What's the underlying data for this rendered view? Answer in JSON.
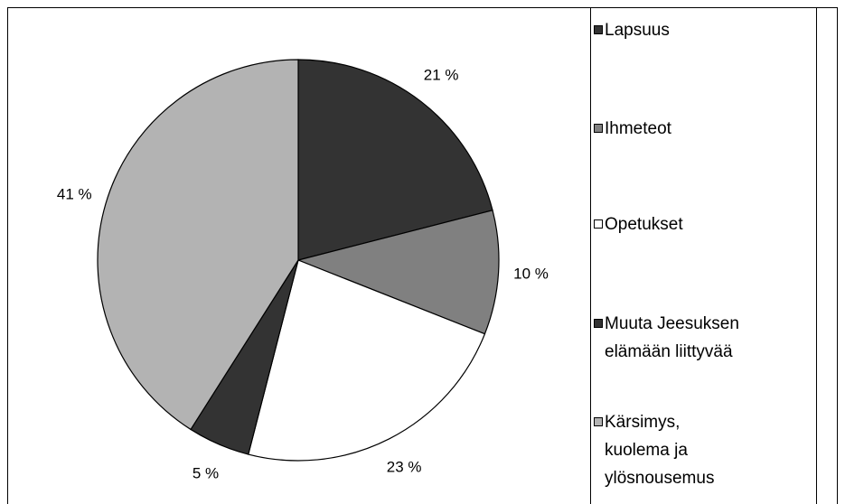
{
  "chart_data": {
    "type": "pie",
    "categories": [
      "Lapsuus",
      "Ihmeteot",
      "Opetukset",
      "Muuta Jeesuksen\nelämään liittyvää",
      "Kärsimys,\nkuolema ja\nylösnousemus"
    ],
    "values": [
      21,
      10,
      23,
      5,
      41
    ],
    "value_labels": [
      "21 %",
      "10 %",
      "23 %",
      "5 %",
      "41 %"
    ],
    "colors": [
      "#333333",
      "#808080",
      "#ffffff",
      "#333333",
      "#b3b3b3"
    ],
    "legend": "right"
  }
}
